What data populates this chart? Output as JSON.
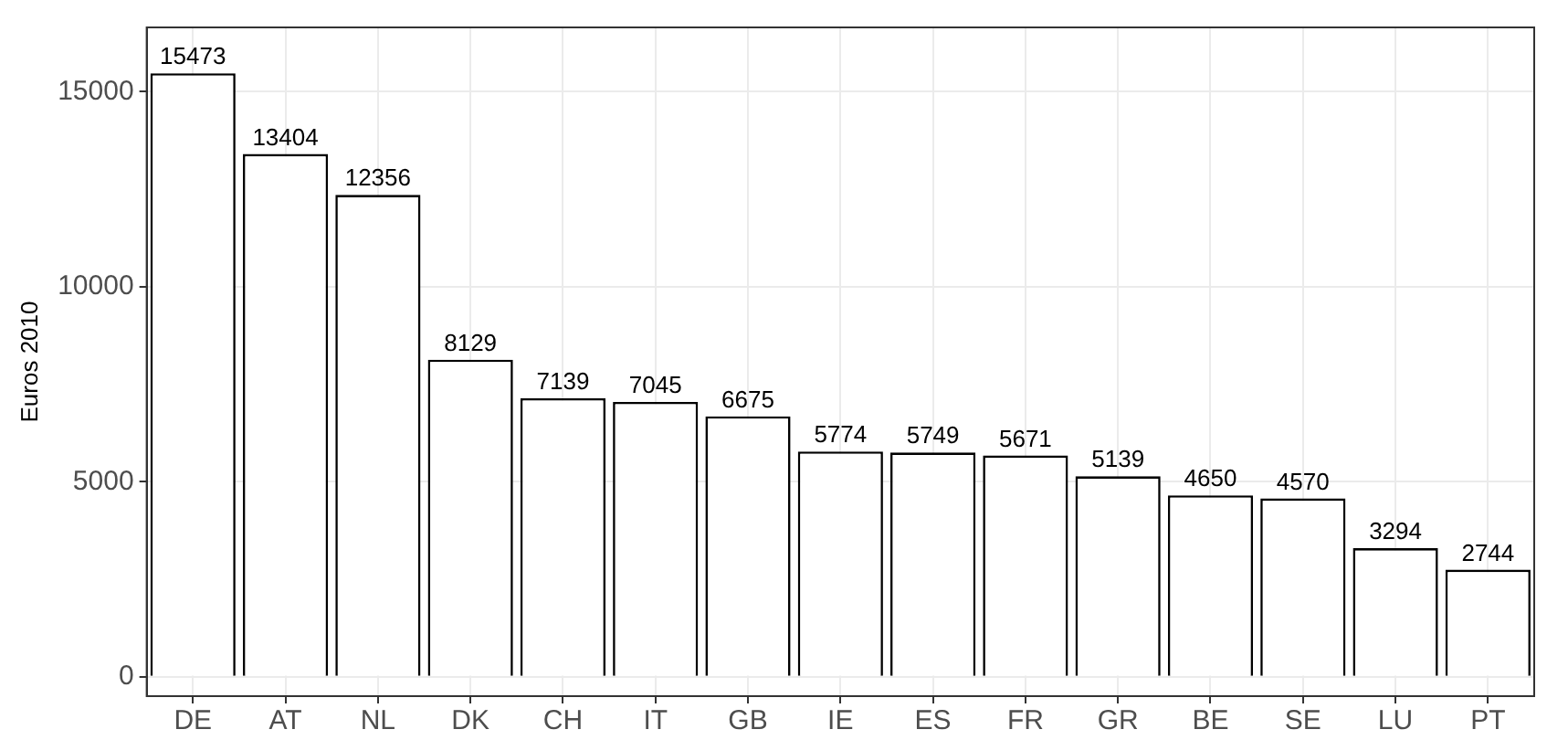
{
  "chart_data": {
    "type": "bar",
    "ylabel": "Euros 2010",
    "categories": [
      "DE",
      "AT",
      "NL",
      "DK",
      "CH",
      "IT",
      "GB",
      "IE",
      "ES",
      "FR",
      "GR",
      "BE",
      "SE",
      "LU",
      "PT"
    ],
    "values": [
      15473,
      13404,
      12356,
      8129,
      7139,
      7045,
      6675,
      5774,
      5749,
      5671,
      5139,
      4650,
      4570,
      3294,
      2744
    ],
    "color": "#ffffff",
    "ylim": [
      -500,
      16650
    ],
    "yticks": [
      0,
      5000,
      10000,
      15000
    ],
    "grid": true,
    "data_labels": true
  }
}
